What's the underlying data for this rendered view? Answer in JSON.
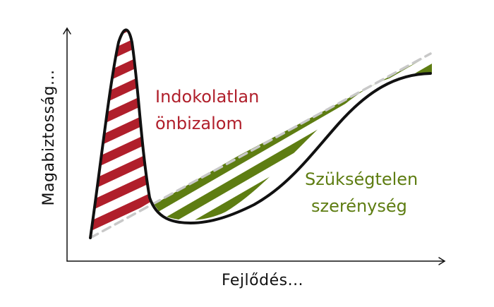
{
  "axes": {
    "x_label": "Fejlődés...",
    "y_label": "Magabiztosság..."
  },
  "regions": {
    "overconfidence": {
      "line1": "Indokolatlan",
      "line2": "önbizalom",
      "color": "#b01f2b"
    },
    "underconfidence": {
      "line1": "Szükségtelen",
      "line2": "szerénység",
      "color": "#5e7d12"
    }
  },
  "colors": {
    "curve": "#111111",
    "reference_line": "#c8c8c8",
    "axis": "#111111"
  }
}
